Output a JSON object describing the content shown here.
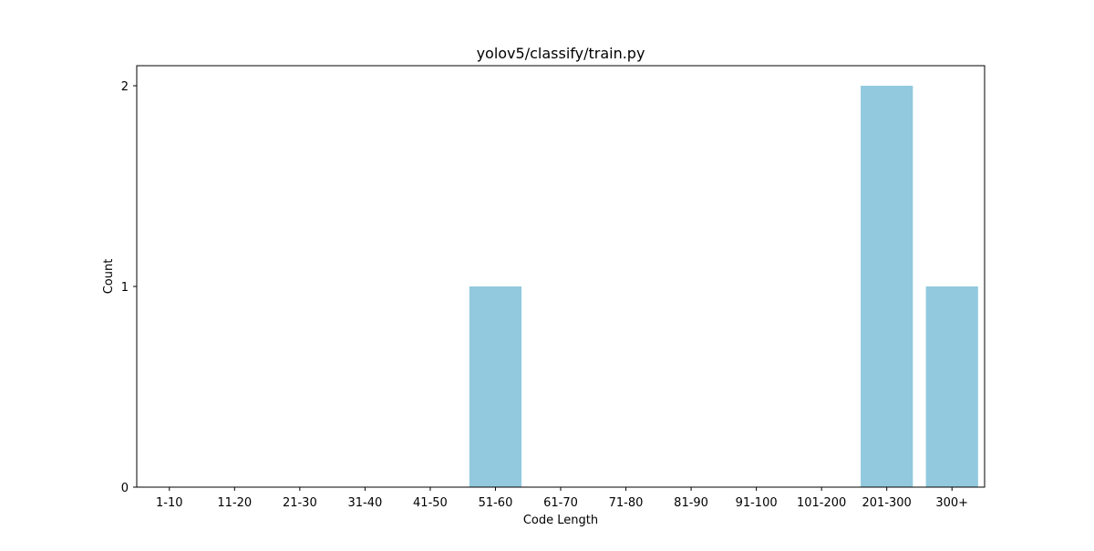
{
  "chart_data": {
    "type": "bar",
    "title": "yolov5/classify/train.py",
    "xlabel": "Code Length",
    "ylabel": "Count",
    "categories": [
      "1-10",
      "11-20",
      "21-30",
      "31-40",
      "41-50",
      "51-60",
      "61-70",
      "71-80",
      "81-90",
      "91-100",
      "101-200",
      "201-300",
      "300+"
    ],
    "values": [
      0,
      0,
      0,
      0,
      0,
      1,
      0,
      0,
      0,
      0,
      0,
      2,
      1
    ],
    "ylim": [
      0,
      2.1
    ],
    "yticks": [
      0,
      1,
      2
    ],
    "grid": false,
    "bar_color": "#92c9de"
  }
}
